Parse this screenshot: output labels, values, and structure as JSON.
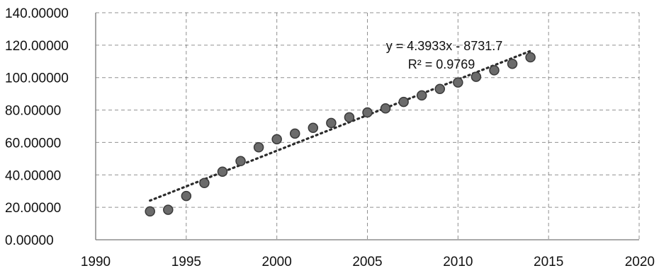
{
  "chart_data": {
    "type": "scatter",
    "title": "",
    "xlabel": "",
    "ylabel": "",
    "xlim": [
      1990,
      2020
    ],
    "ylim": [
      0,
      140
    ],
    "x_ticks": [
      1990,
      1995,
      2000,
      2005,
      2010,
      2015,
      2020
    ],
    "y_ticks": [
      0,
      20,
      40,
      60,
      80,
      100,
      120,
      140
    ],
    "x_tick_labels": [
      "1990",
      "1995",
      "2000",
      "2005",
      "2010",
      "2015",
      "2020"
    ],
    "y_tick_labels": [
      "0.00000",
      "20.00000",
      "40.00000",
      "60.00000",
      "80.00000",
      "100.00000",
      "120.00000",
      "140.00000"
    ],
    "grid": true,
    "legend": "none",
    "marker_color": "#6b6b6b",
    "series": [
      {
        "x": [
          1993,
          1994,
          1995,
          1996,
          1997,
          1998,
          1999,
          2000,
          2001,
          2002,
          2003,
          2004,
          2005,
          2006,
          2007,
          2008,
          2009,
          2010,
          2011,
          2012,
          2013,
          2014
        ],
        "y": [
          17.5,
          18.5,
          27,
          35,
          42,
          48.5,
          57,
          62,
          65.5,
          69,
          72,
          75.5,
          78.5,
          81,
          85,
          89,
          93,
          97,
          100.5,
          104.5,
          108.5,
          112.5
        ]
      }
    ],
    "trendline": {
      "type": "linear",
      "slope": 4.3933,
      "intercept": -8731.7,
      "x_range": [
        1993,
        2014
      ],
      "equation_label": "y = 4.3933x - 8731.7",
      "r2_label": "R² = 0.9769"
    }
  }
}
